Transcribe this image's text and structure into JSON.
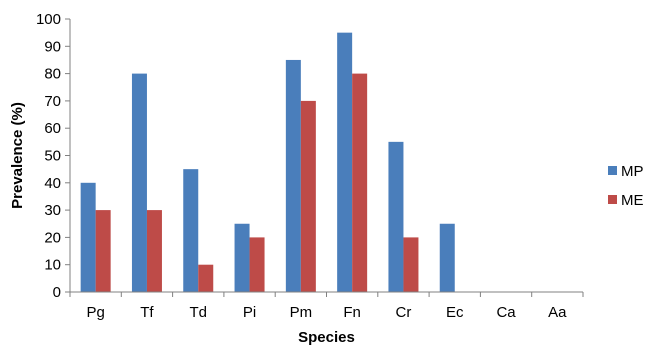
{
  "chart_data": {
    "type": "bar",
    "title": "",
    "xlabel": "Species",
    "ylabel": "Prevalence (%)",
    "ylim": [
      0,
      100
    ],
    "yticks": [
      0,
      10,
      20,
      30,
      40,
      50,
      60,
      70,
      80,
      90,
      100
    ],
    "grid": false,
    "legend_position": "right",
    "categories": [
      "Pg",
      "Tf",
      "Td",
      "Pi",
      "Pm",
      "Fn",
      "Cr",
      "Ec",
      "Ca",
      "Aa"
    ],
    "series": [
      {
        "name": "MP",
        "color": "#4a7ebb",
        "values": [
          40,
          80,
          45,
          25,
          85,
          95,
          55,
          25,
          0,
          0
        ]
      },
      {
        "name": "ME",
        "color": "#be4b48",
        "values": [
          30,
          30,
          10,
          20,
          70,
          80,
          20,
          0,
          0,
          0
        ]
      }
    ]
  }
}
